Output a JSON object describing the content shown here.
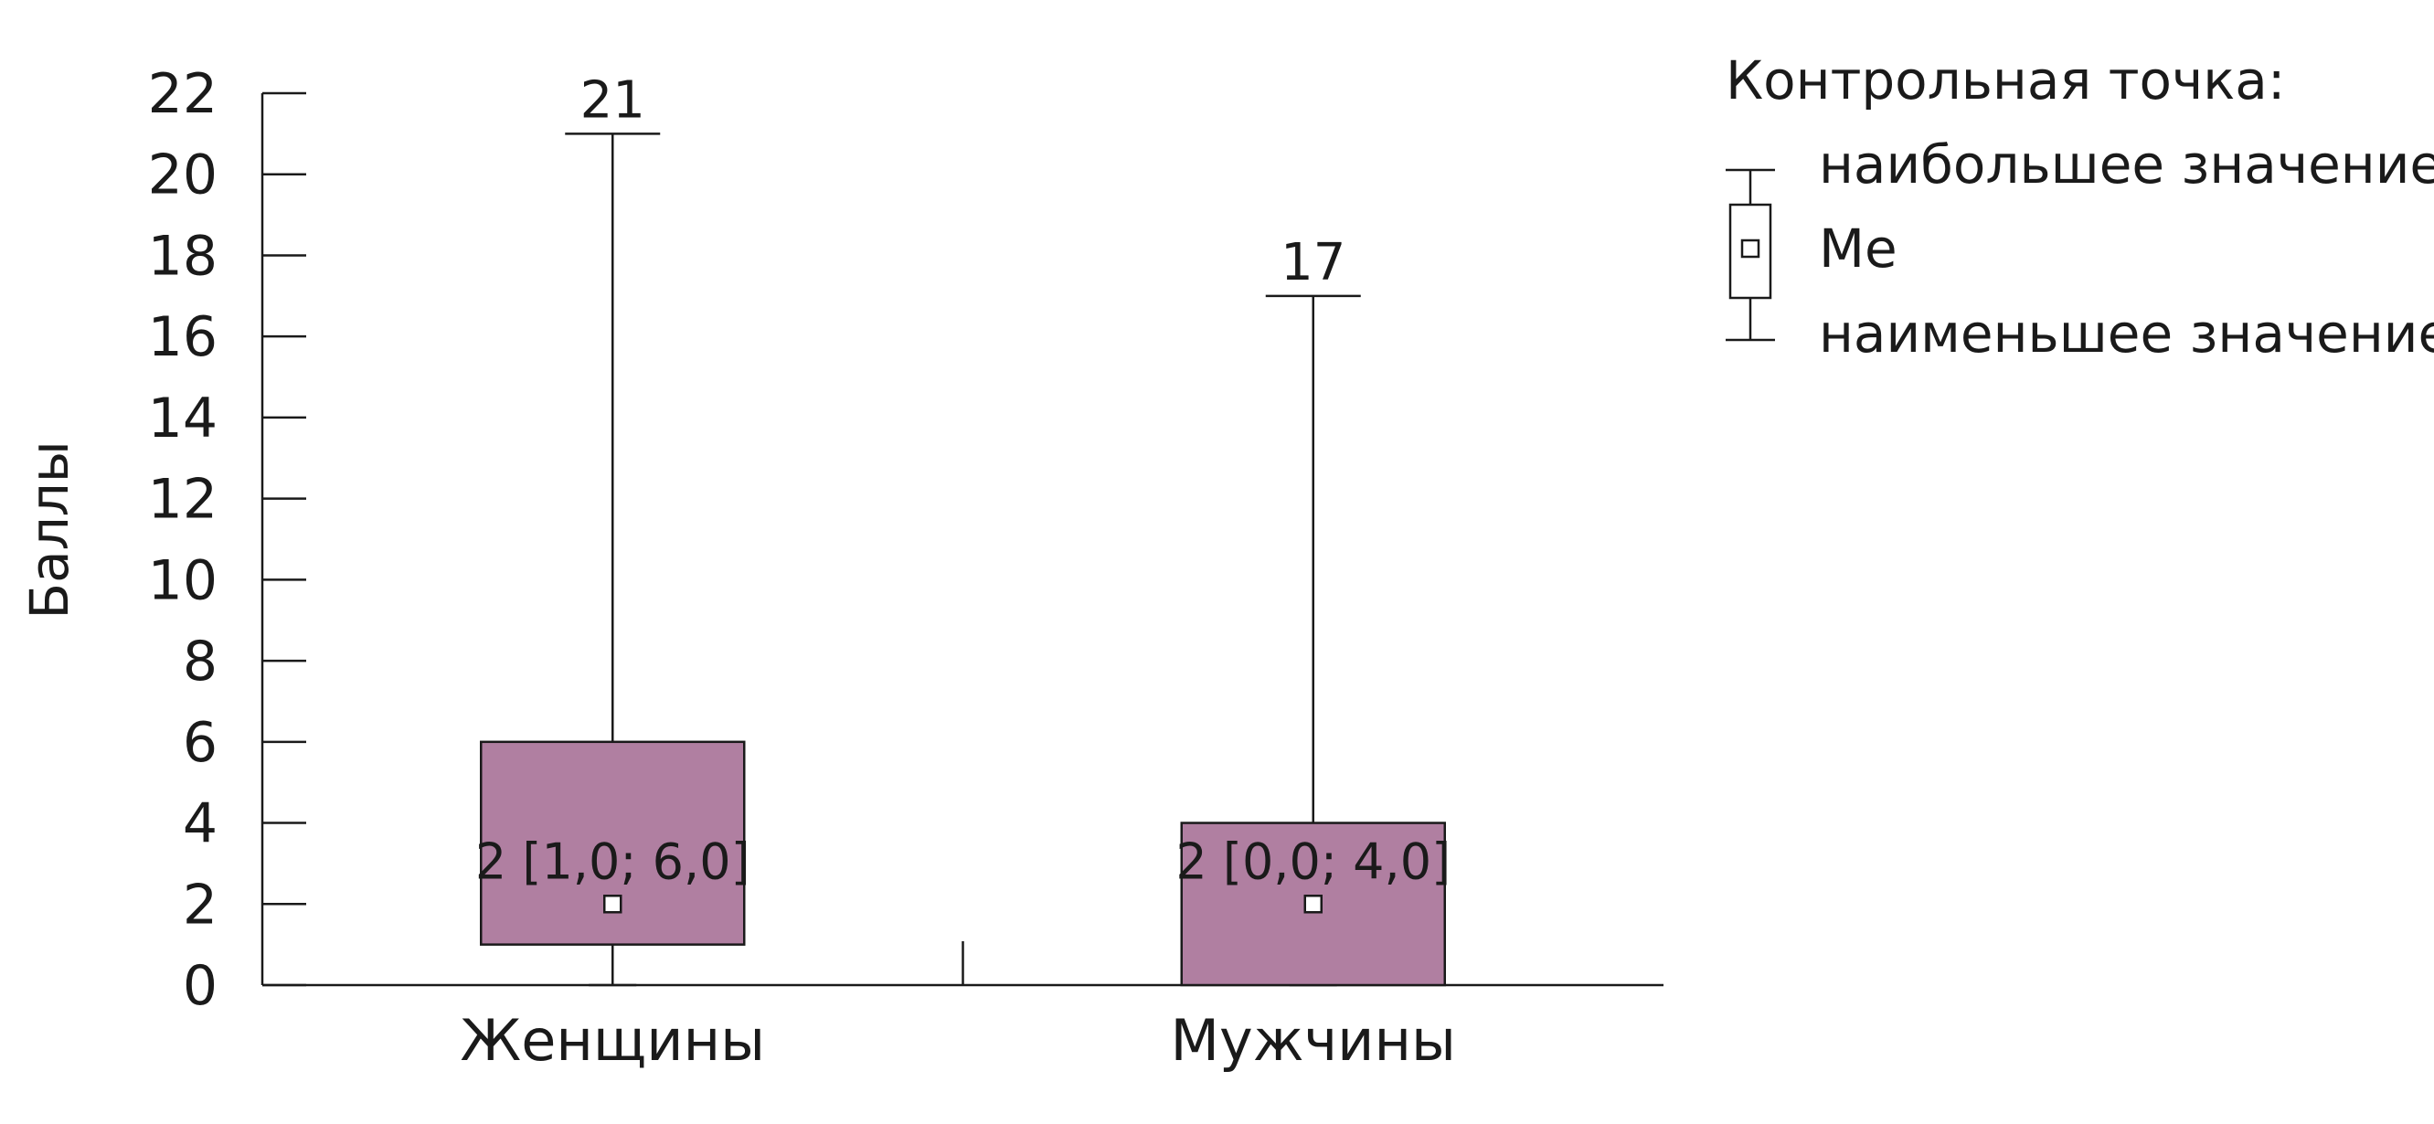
{
  "chart_data": {
    "type": "boxplot",
    "ylabel": "Баллы",
    "xlabel": "",
    "ylim": [
      0,
      22
    ],
    "yticks": [
      "0",
      "2",
      "4",
      "6",
      "8",
      "10",
      "12",
      "14",
      "16",
      "18",
      "20",
      "22"
    ],
    "grid": false,
    "box_color": "#b07fa1",
    "categories": [
      "Женщины",
      "Мужчины"
    ],
    "groups": [
      {
        "category": "Женщины",
        "min": 0,
        "q1": 1,
        "median": 2,
        "q3": 6,
        "max": 21,
        "max_label": "21",
        "box_label": "2 [1,0; 6,0]"
      },
      {
        "category": "Мужчины",
        "min": 0,
        "q1": 0,
        "median": 2,
        "q3": 4,
        "max": 17,
        "max_label": "17",
        "box_label": "2 [0,0; 4,0]"
      }
    ],
    "legend": {
      "placement": "top-right",
      "title": "Контрольная точка:",
      "max_label": "наибольшее значение",
      "median_label": "Me",
      "min_label": "наименьшее значение"
    }
  }
}
